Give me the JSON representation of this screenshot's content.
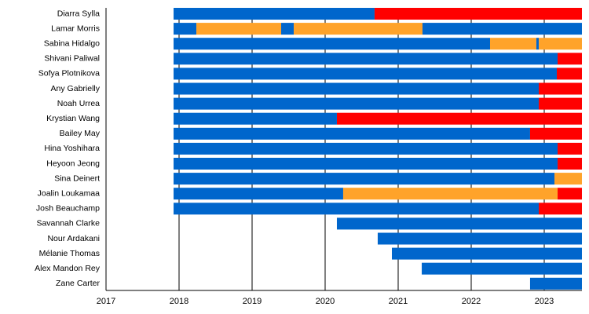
{
  "chart_data": {
    "type": "timeline",
    "title": "",
    "xlabel": "",
    "ylabel": "",
    "xlim": [
      2017,
      2023.516
    ],
    "x_ticks": [
      "2017",
      "2018",
      "2019",
      "2020",
      "2021",
      "2022",
      "2023"
    ],
    "grid": "vertical lines at each year",
    "colors": {
      "blue": "#0066cc",
      "red": "#ff0000",
      "orange": "#ffa32a"
    },
    "rows": [
      {
        "name": "Diarra Sylla",
        "segments": [
          [
            2017.925,
            2020.677,
            "blue"
          ],
          [
            2020.677,
            2023.516,
            "red"
          ]
        ]
      },
      {
        "name": "Lamar Morris",
        "segments": [
          [
            2017.925,
            2018.237,
            "blue"
          ],
          [
            2018.237,
            2019.398,
            "orange"
          ],
          [
            2019.398,
            2019.57,
            "blue"
          ],
          [
            2019.57,
            2021.333,
            "orange"
          ],
          [
            2021.333,
            2023.516,
            "blue"
          ]
        ]
      },
      {
        "name": "Sabina Hidalgo",
        "segments": [
          [
            2017.925,
            2022.258,
            "blue"
          ],
          [
            2022.258,
            2022.892,
            "orange"
          ],
          [
            2022.892,
            2022.925,
            "blue"
          ],
          [
            2022.925,
            2023.516,
            "orange"
          ]
        ]
      },
      {
        "name": "Shivani Paliwal",
        "segments": [
          [
            2017.925,
            2023.183,
            "blue"
          ],
          [
            2023.183,
            2023.516,
            "red"
          ]
        ]
      },
      {
        "name": "Sofya Plotnikova",
        "segments": [
          [
            2017.925,
            2023.172,
            "blue"
          ],
          [
            2023.172,
            2023.516,
            "red"
          ]
        ]
      },
      {
        "name": "Any Gabrielly",
        "segments": [
          [
            2017.925,
            2022.925,
            "blue"
          ],
          [
            2022.925,
            2023.516,
            "red"
          ]
        ]
      },
      {
        "name": "Noah Urrea",
        "segments": [
          [
            2017.925,
            2022.925,
            "blue"
          ],
          [
            2022.925,
            2023.516,
            "red"
          ]
        ]
      },
      {
        "name": "Krystian Wang",
        "segments": [
          [
            2017.925,
            2020.161,
            "blue"
          ],
          [
            2020.161,
            2023.516,
            "red"
          ]
        ]
      },
      {
        "name": "Bailey May",
        "segments": [
          [
            2017.925,
            2022.806,
            "blue"
          ],
          [
            2022.806,
            2023.516,
            "red"
          ]
        ]
      },
      {
        "name": "Hina Yoshihara",
        "segments": [
          [
            2017.925,
            2023.183,
            "blue"
          ],
          [
            2023.183,
            2023.516,
            "red"
          ]
        ]
      },
      {
        "name": "Heyoon Jeong",
        "segments": [
          [
            2017.925,
            2023.183,
            "blue"
          ],
          [
            2023.183,
            2023.516,
            "red"
          ]
        ]
      },
      {
        "name": "Sina Deinert",
        "segments": [
          [
            2017.925,
            2023.14,
            "blue"
          ],
          [
            2023.14,
            2023.516,
            "orange"
          ]
        ]
      },
      {
        "name": "Joalin Loukamaa",
        "segments": [
          [
            2017.925,
            2020.247,
            "blue"
          ],
          [
            2020.247,
            2023.183,
            "orange"
          ],
          [
            2023.183,
            2023.516,
            "red"
          ]
        ]
      },
      {
        "name": "Josh Beauchamp",
        "segments": [
          [
            2017.925,
            2022.925,
            "blue"
          ],
          [
            2022.925,
            2023.516,
            "red"
          ]
        ]
      },
      {
        "name": "Savannah Clarke",
        "segments": [
          [
            2020.161,
            2023.516,
            "blue"
          ]
        ]
      },
      {
        "name": "Nour Ardakani",
        "segments": [
          [
            2020.72,
            2023.516,
            "blue"
          ]
        ]
      },
      {
        "name": "Mélanie Thomas",
        "segments": [
          [
            2020.914,
            2023.516,
            "blue"
          ]
        ]
      },
      {
        "name": "Alex Mandon Rey",
        "segments": [
          [
            2021.323,
            2023.516,
            "blue"
          ]
        ]
      },
      {
        "name": "Zane Carter",
        "segments": [
          [
            2022.806,
            2023.516,
            "blue"
          ]
        ]
      }
    ]
  }
}
